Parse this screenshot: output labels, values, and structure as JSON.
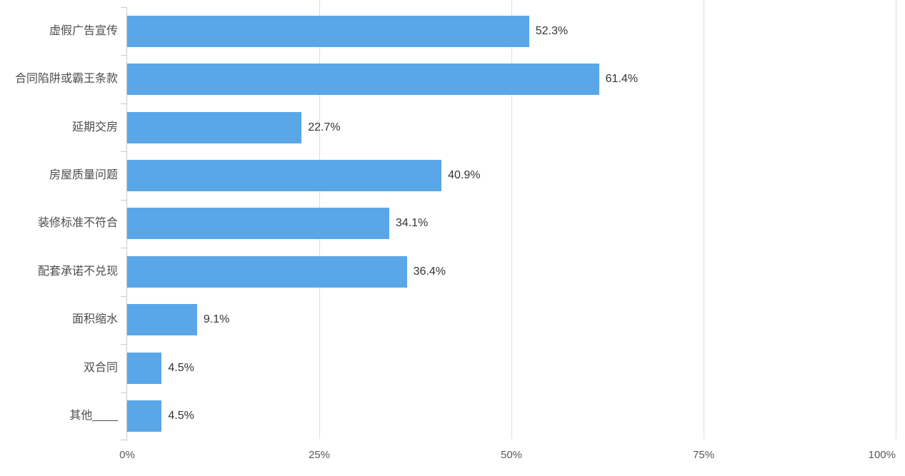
{
  "chart_data": {
    "type": "bar",
    "orientation": "horizontal",
    "title": "",
    "xlabel": "",
    "ylabel": "",
    "categories": [
      "虚假广告宣传",
      "合同陷阱或霸王条款",
      "延期交房",
      "房屋质量问题",
      "装修标准不符合",
      "配套承诺不兑现",
      "面积缩水",
      "双合同",
      "其他____"
    ],
    "values": [
      52.3,
      61.4,
      22.7,
      40.9,
      34.1,
      36.4,
      9.1,
      4.5,
      4.5
    ],
    "value_labels": [
      "52.3%",
      "61.4%",
      "22.7%",
      "40.9%",
      "34.1%",
      "36.4%",
      "9.1%",
      "4.5%",
      "4.5%"
    ],
    "xlim": [
      0,
      100
    ],
    "x_tick_values": [
      0,
      25,
      50,
      75,
      100
    ],
    "x_tick_labels": [
      "0%",
      "25%",
      "50%",
      "75%",
      "100%"
    ],
    "grid": "vertical-gridlines-on",
    "legend": "none"
  },
  "colors": {
    "bar": "#5aa7e8",
    "gridline": "#dddddd",
    "axis": "#c9c9c9",
    "category_label": "#4d4d4d",
    "value_label": "#333333",
    "tick_label": "#595959",
    "background": "#ffffff"
  }
}
